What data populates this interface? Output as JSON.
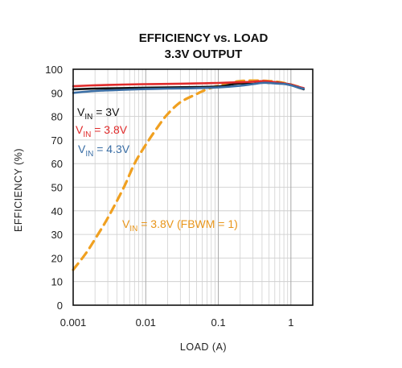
{
  "chart_data": {
    "type": "line",
    "title": [
      "EFFICIENCY vs. LOAD",
      "3.3V OUTPUT"
    ],
    "xlabel": "LOAD (A)",
    "ylabel": "EFFICIENCY (%)",
    "xscale": "log",
    "xlim": [
      0.001,
      2
    ],
    "ylim": [
      0,
      100
    ],
    "grid": "on",
    "x_ticks": [
      {
        "value": 0.001,
        "label": "0.001"
      },
      {
        "value": 0.01,
        "label": "0.01"
      },
      {
        "value": 0.1,
        "label": "0.1"
      },
      {
        "value": 1,
        "label": "1"
      }
    ],
    "y_ticks": [
      {
        "value": 0,
        "label": "0"
      },
      {
        "value": 10,
        "label": "10"
      },
      {
        "value": 20,
        "label": "20"
      },
      {
        "value": 30,
        "label": "30"
      },
      {
        "value": 40,
        "label": "40"
      },
      {
        "value": 50,
        "label": "50"
      },
      {
        "value": 60,
        "label": "60"
      },
      {
        "value": 70,
        "label": "70"
      },
      {
        "value": 80,
        "label": "80"
      },
      {
        "value": 90,
        "label": "90"
      },
      {
        "value": 100,
        "label": "100"
      }
    ],
    "series": [
      {
        "name": "V_IN = 3V",
        "label_main": "V",
        "label_sub": "IN",
        "label_rest": " = 3V",
        "color": "#111111",
        "style": "solid",
        "x": [
          0.001,
          0.002,
          0.005,
          0.01,
          0.02,
          0.05,
          0.1,
          0.15,
          0.2,
          0.3,
          0.4,
          0.5,
          0.6,
          0.8,
          1,
          1.2,
          1.5
        ],
        "y": [
          91.5,
          91.8,
          92,
          92.2,
          92.3,
          92.5,
          92.7,
          93.5,
          94,
          93.8,
          94.5,
          94.2,
          94.5,
          94,
          93.5,
          92.5,
          91.5
        ]
      },
      {
        "name": "V_IN = 3.8V",
        "label_main": "V",
        "label_sub": "IN",
        "label_rest": " = 3.8V",
        "color": "#e02b2b",
        "style": "solid",
        "x": [
          0.001,
          0.002,
          0.005,
          0.01,
          0.02,
          0.05,
          0.1,
          0.2,
          0.3,
          0.4,
          0.5,
          0.6,
          0.8,
          1,
          1.2,
          1.5
        ],
        "y": [
          92.8,
          93.2,
          93.5,
          93.7,
          93.8,
          94,
          94.2,
          94.5,
          94.7,
          95,
          94.8,
          94.5,
          94,
          93.5,
          92.8,
          92
        ]
      },
      {
        "name": "V_IN = 4.3V",
        "label_main": "V",
        "label_sub": "IN",
        "label_rest": " = 4.3V",
        "color": "#3a6ea5",
        "style": "solid",
        "x": [
          0.001,
          0.002,
          0.005,
          0.01,
          0.02,
          0.05,
          0.1,
          0.2,
          0.3,
          0.4,
          0.5,
          0.6,
          0.8,
          1,
          1.2,
          1.5
        ],
        "y": [
          90,
          90.8,
          91.3,
          91.6,
          91.8,
          92,
          92.3,
          93,
          93.7,
          94.2,
          94.2,
          94,
          93.8,
          93.2,
          92.5,
          91.7
        ]
      },
      {
        "name": "V_IN = 3.8V (FBWM = 1)",
        "label_main": "V",
        "label_sub": "IN",
        "label_rest": " = 3.8V (FBWM = 1)",
        "color": "#f0a020",
        "style": "dashed",
        "x": [
          0.001,
          0.0015,
          0.002,
          0.003,
          0.005,
          0.007,
          0.01,
          0.015,
          0.02,
          0.03,
          0.05,
          0.07,
          0.1,
          0.15,
          0.2,
          0.3,
          0.5,
          0.7,
          1,
          1.3
        ],
        "y": [
          15,
          22,
          28,
          37,
          50,
          60,
          68,
          76,
          81,
          86,
          89.5,
          91.5,
          93,
          94.3,
          95,
          95.2,
          95,
          94.5,
          93.5,
          92.5
        ]
      }
    ],
    "annotations": [
      {
        "series": 0,
        "text_main": "V",
        "text_sub": "IN",
        "text_rest": " = 3V"
      },
      {
        "series": 1,
        "text_main": "V",
        "text_sub": "IN",
        "text_rest": " = 3.8V"
      },
      {
        "series": 2,
        "text_main": "V",
        "text_sub": "IN",
        "text_rest": " = 4.3V"
      },
      {
        "series": 3,
        "text_main": "V",
        "text_sub": "IN",
        "text_rest": " = 3.8V (FBWM = 1)"
      }
    ]
  }
}
